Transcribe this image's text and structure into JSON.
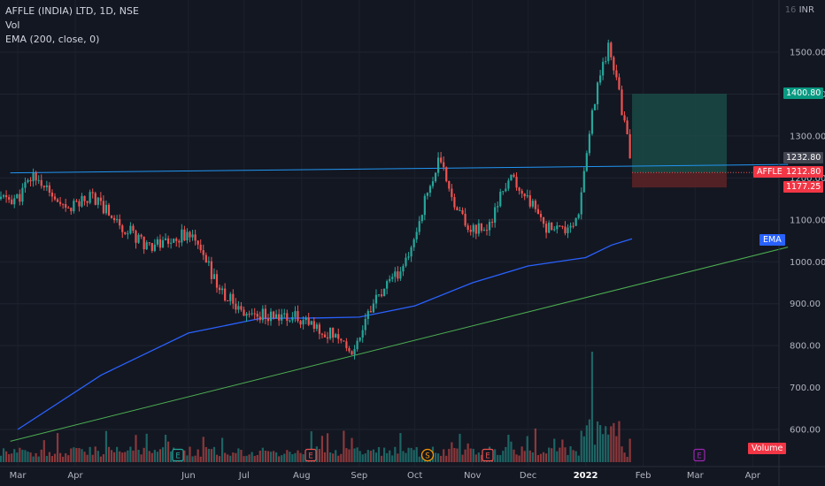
{
  "header": {
    "symbol_line": "AFFLE (INDIA) LTD, 1D, NSE",
    "vol_label": "Vol",
    "ema_label": "EMA (200, close, 0)",
    "currency": "INR",
    "currency_partial": "16"
  },
  "price_labels": {
    "target": "1400.80",
    "last": "1232.80",
    "symbol_tag": "AFFLE",
    "symbol_price": "1212.80",
    "stop": "1177.25",
    "ema_tag": "EMA",
    "volume_tag": "Volume"
  },
  "event_markers": [
    "E",
    "E",
    "S",
    "E",
    "E"
  ],
  "colors": {
    "background": "#131722",
    "up": "#26a69a",
    "down": "#ef5350",
    "ema": "#2962ff",
    "trend_support": "#4caf50",
    "trend_resistance": "#2196f3",
    "target_zone": "#1a4a45",
    "stop_zone": "#5a2226"
  },
  "chart_data": {
    "type": "candlestick",
    "title": "AFFLE (INDIA) LTD, 1D, NSE",
    "y_scale": "linear",
    "ylim": [
      520,
      1600
    ],
    "y_ticks": [
      "600.00",
      "700.00",
      "800.00",
      "900.00",
      "1000.00",
      "1100.00",
      "1200.00",
      "1300.00",
      "1400.00",
      "1500.00"
    ],
    "x_ticks": [
      "Mar",
      "Apr",
      "Jun",
      "Jul",
      "Aug",
      "Sep",
      "Oct",
      "Nov",
      "Dec",
      "2022",
      "Feb",
      "Mar",
      "Apr"
    ],
    "price_path": [
      {
        "date": "2021-03-01",
        "close": 1150
      },
      {
        "date": "2021-03-10",
        "close": 1210
      },
      {
        "date": "2021-03-25",
        "close": 1120
      },
      {
        "date": "2021-04-10",
        "close": 1160
      },
      {
        "date": "2021-04-25",
        "close": 1090
      },
      {
        "date": "2021-05-10",
        "close": 1040
      },
      {
        "date": "2021-05-25",
        "close": 1055
      },
      {
        "date": "2021-06-01",
        "close": 1070
      },
      {
        "date": "2021-06-10",
        "close": 1000
      },
      {
        "date": "2021-06-20",
        "close": 920
      },
      {
        "date": "2021-07-01",
        "close": 880
      },
      {
        "date": "2021-07-15",
        "close": 870
      },
      {
        "date": "2021-08-01",
        "close": 865
      },
      {
        "date": "2021-08-10",
        "close": 835
      },
      {
        "date": "2021-08-20",
        "close": 830
      },
      {
        "date": "2021-08-29",
        "close": 780
      },
      {
        "date": "2021-09-05",
        "close": 880
      },
      {
        "date": "2021-09-20",
        "close": 960
      },
      {
        "date": "2021-09-28",
        "close": 1010
      },
      {
        "date": "2021-10-05",
        "close": 1130
      },
      {
        "date": "2021-10-14",
        "close": 1240
      },
      {
        "date": "2021-10-22",
        "close": 1150
      },
      {
        "date": "2021-10-29",
        "close": 1080
      },
      {
        "date": "2021-11-10",
        "close": 1080
      },
      {
        "date": "2021-11-20",
        "close": 1200
      },
      {
        "date": "2021-11-30",
        "close": 1160
      },
      {
        "date": "2021-12-10",
        "close": 1080
      },
      {
        "date": "2021-12-20",
        "close": 1070
      },
      {
        "date": "2021-12-28",
        "close": 1100
      },
      {
        "date": "2022-01-03",
        "close": 1300
      },
      {
        "date": "2022-01-08",
        "close": 1450
      },
      {
        "date": "2022-01-13",
        "close": 1510
      },
      {
        "date": "2022-01-18",
        "close": 1420
      },
      {
        "date": "2022-01-22",
        "close": 1330
      },
      {
        "date": "2022-01-26",
        "close": 1212
      }
    ],
    "ema200": [
      {
        "date": "2021-03-01",
        "value": 600
      },
      {
        "date": "2021-04-15",
        "value": 730
      },
      {
        "date": "2021-06-01",
        "value": 830
      },
      {
        "date": "2021-07-10",
        "value": 865
      },
      {
        "date": "2021-08-10",
        "value": 866
      },
      {
        "date": "2021-09-01",
        "value": 868
      },
      {
        "date": "2021-10-01",
        "value": 895
      },
      {
        "date": "2021-11-01",
        "value": 950
      },
      {
        "date": "2021-12-01",
        "value": 990
      },
      {
        "date": "2022-01-01",
        "value": 1010
      },
      {
        "date": "2022-01-15",
        "value": 1040
      },
      {
        "date": "2022-01-26",
        "value": 1055
      }
    ],
    "trendlines": [
      {
        "role": "resistance",
        "from": {
          "date": "2021-02-25",
          "price": 1212
        },
        "to": {
          "date": "2022-04-20",
          "price": 1232
        }
      },
      {
        "role": "support",
        "from": {
          "date": "2021-02-25",
          "price": 572
        },
        "to": {
          "date": "2022-04-20",
          "price": 1035
        }
      }
    ],
    "position": {
      "entry": 1212.8,
      "target": 1400.8,
      "stop": 1177.25,
      "from": "2022-01-26",
      "to": "2022-03-18"
    }
  }
}
